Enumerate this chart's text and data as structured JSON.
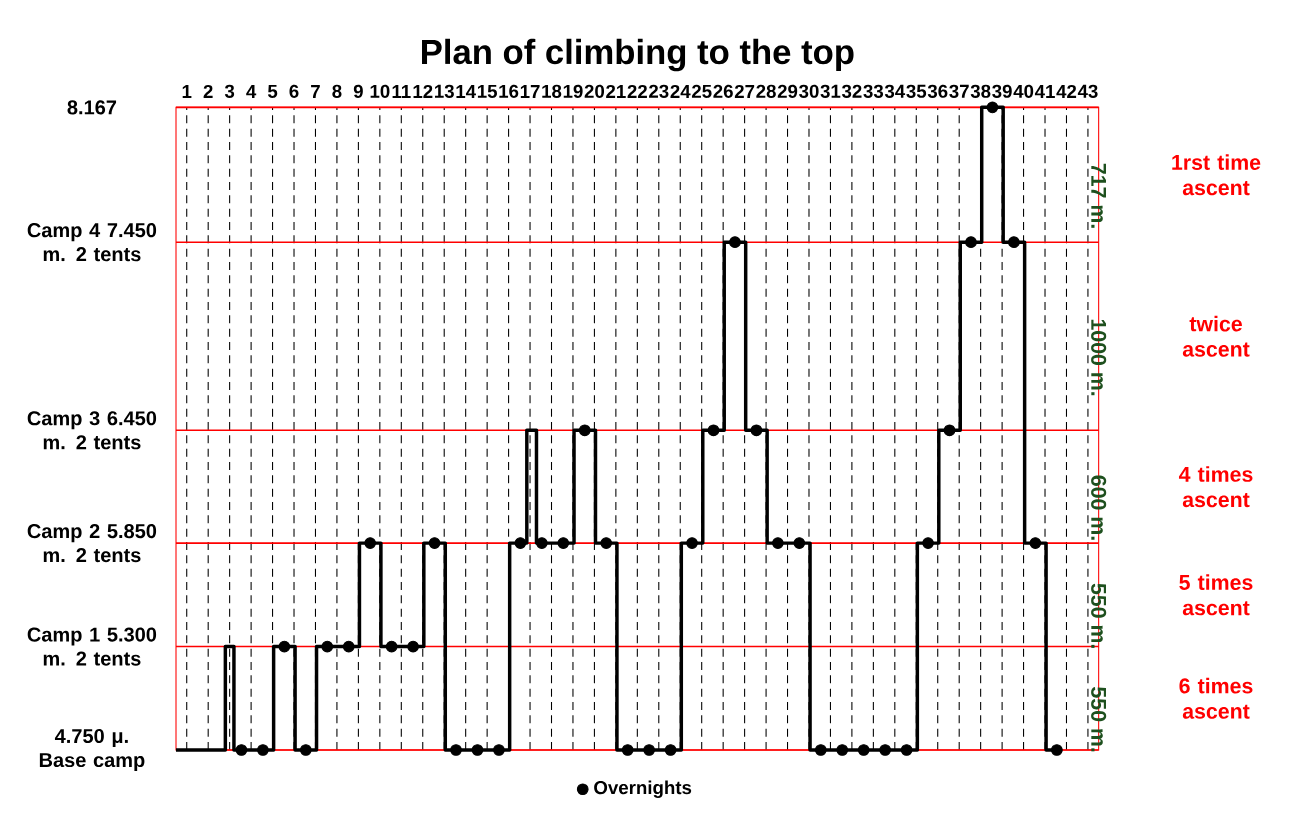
{
  "chart_data": {
    "type": "line",
    "title": "Plan of climbing to the top",
    "x": [
      0.5,
      2.8,
      2.8,
      3.2,
      3.2,
      5.05,
      5.05,
      6.05,
      6.05,
      7.05,
      7.05,
      9.05,
      9.05,
      10.05,
      10.05,
      12.05,
      12.05,
      13.05,
      13.05,
      16.05,
      16.05,
      16.85,
      16.85,
      17.3,
      17.3,
      19.05,
      19.05,
      20.05,
      20.05,
      21.05,
      21.05,
      24.05,
      24.05,
      25.05,
      25.05,
      26.05,
      26.05,
      27.05,
      27.05,
      28.05,
      28.05,
      30.05,
      30.05,
      35.05,
      35.05,
      36.05,
      36.05,
      37.05,
      37.05,
      38.05,
      38.05,
      39.05,
      39.05,
      40.05,
      40.05,
      41.05,
      41.05,
      41.8
    ],
    "series": [
      {
        "type": "line",
        "color": "#000000",
        "marker": "none",
        "values": [
          4750,
          4750,
          5300,
          5300,
          4750,
          4750,
          5300,
          5300,
          4750,
          4750,
          5300,
          5300,
          5850,
          5850,
          5300,
          5300,
          5850,
          5850,
          4750,
          4750,
          5850,
          5850,
          6450,
          6450,
          5850,
          5850,
          6450,
          6450,
          5850,
          5850,
          4750,
          4750,
          5850,
          5850,
          6450,
          6450,
          7450,
          7450,
          6450,
          6450,
          5850,
          5850,
          4750,
          4750,
          5850,
          5850,
          6450,
          6450,
          7450,
          7450,
          8167,
          8167,
          7450,
          7450,
          5850,
          5850,
          4750,
          4750
        ]
      },
      {
        "type": "scatter",
        "name": "Overnights",
        "color": "#000000",
        "marker": "circle",
        "x": [
          3.55,
          4.55,
          5.55,
          6.55,
          7.55,
          8.55,
          9.55,
          10.55,
          11.55,
          12.55,
          13.55,
          14.55,
          15.55,
          16.55,
          17.55,
          18.55,
          19.55,
          20.55,
          21.55,
          22.55,
          23.55,
          24.55,
          25.55,
          26.55,
          27.55,
          28.55,
          29.55,
          30.55,
          31.55,
          32.55,
          33.55,
          34.55,
          35.55,
          36.55,
          37.55,
          38.55,
          39.55,
          40.55,
          41.55
        ],
        "values": [
          4750,
          4750,
          5300,
          4750,
          5300,
          5300,
          5850,
          5300,
          5300,
          5850,
          4750,
          4750,
          4750,
          5850,
          5850,
          5850,
          6450,
          5850,
          4750,
          4750,
          4750,
          5850,
          6450,
          7450,
          6450,
          5850,
          5850,
          4750,
          4750,
          4750,
          4750,
          4750,
          5850,
          6450,
          7450,
          8167,
          7450,
          5850,
          4750
        ]
      }
    ],
    "xlim": [
      0.5,
      43.5
    ],
    "xticks": [
      1,
      2,
      3,
      4,
      5,
      6,
      7,
      8,
      9,
      10,
      11,
      12,
      13,
      14,
      15,
      16,
      17,
      18,
      19,
      20,
      21,
      22,
      23,
      24,
      25,
      26,
      27,
      28,
      29,
      30,
      31,
      32,
      33,
      34,
      35,
      36,
      37,
      38,
      39,
      40,
      41,
      42,
      43
    ],
    "ylim": [
      4750,
      8167
    ],
    "yticks": [
      {
        "value": 4750,
        "label": "4.750 μ. Base camp"
      },
      {
        "value": 5300,
        "label": "Camp 1 5.300 m. 2 tents"
      },
      {
        "value": 5850,
        "label": "Camp 2 5.850 m. 2 tents"
      },
      {
        "value": 6450,
        "label": "Camp 3 6.450 m. 2 tents"
      },
      {
        "value": 7450,
        "label": "Camp 4 7.450 m. 2 tents"
      },
      {
        "value": 8167,
        "label": "8.167"
      }
    ],
    "annotations": [
      "550 m.",
      "6 times ascent",
      "550 m.",
      "5 times ascent",
      "600 m.",
      "4 times ascent",
      "1000 m.",
      "twice ascent",
      "717 m.",
      "1rst time ascent"
    ],
    "grid": true,
    "legend": "bottom"
  }
}
